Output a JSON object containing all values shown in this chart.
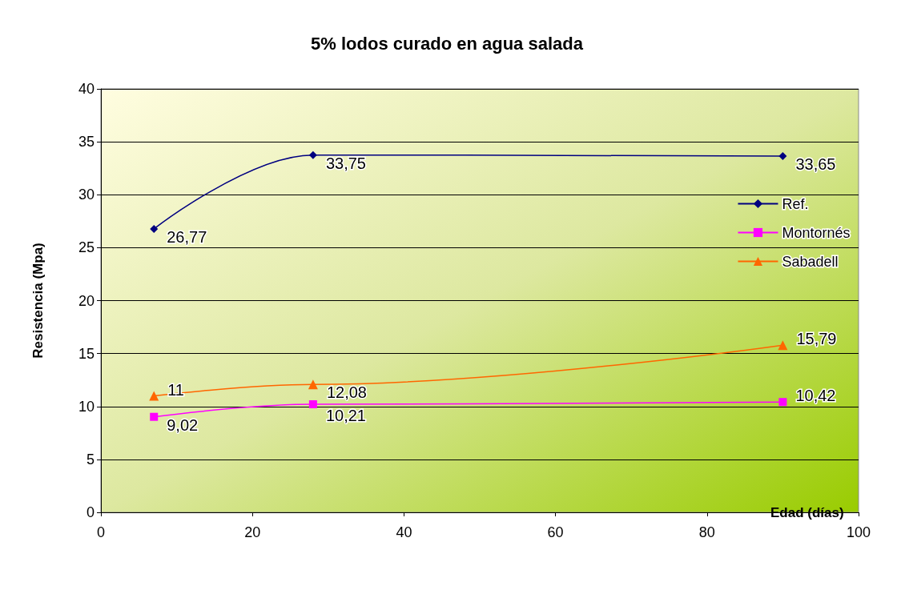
{
  "chart_data": {
    "type": "line",
    "title": "5% lodos curado en agua salada",
    "xlabel": "Edad (días)",
    "ylabel": "Resistencia (Mpa)",
    "x": [
      7,
      28,
      90
    ],
    "xlim": [
      0,
      100
    ],
    "xticks": [
      0,
      20,
      40,
      60,
      80,
      100
    ],
    "ylim": [
      0,
      40
    ],
    "yticks": [
      0,
      5,
      10,
      15,
      20,
      25,
      30,
      35,
      40
    ],
    "grid": "y",
    "legend": "right",
    "series": [
      {
        "name": "Ref.",
        "color": "#000080",
        "marker": "diamond",
        "values": [
          26.77,
          33.75,
          33.65
        ],
        "value_labels": [
          "26,77",
          "33,75",
          "33,65"
        ]
      },
      {
        "name": "Montornés",
        "color": "#ff00ff",
        "marker": "square",
        "values": [
          9.02,
          10.21,
          10.42
        ],
        "value_labels": [
          "9,02",
          "10,21",
          "10,42"
        ]
      },
      {
        "name": "Sabadell",
        "color": "#ff6600",
        "marker": "triangle",
        "values": [
          11,
          12.08,
          15.79
        ],
        "value_labels": [
          "11",
          "12,08",
          "15,79"
        ]
      }
    ]
  }
}
